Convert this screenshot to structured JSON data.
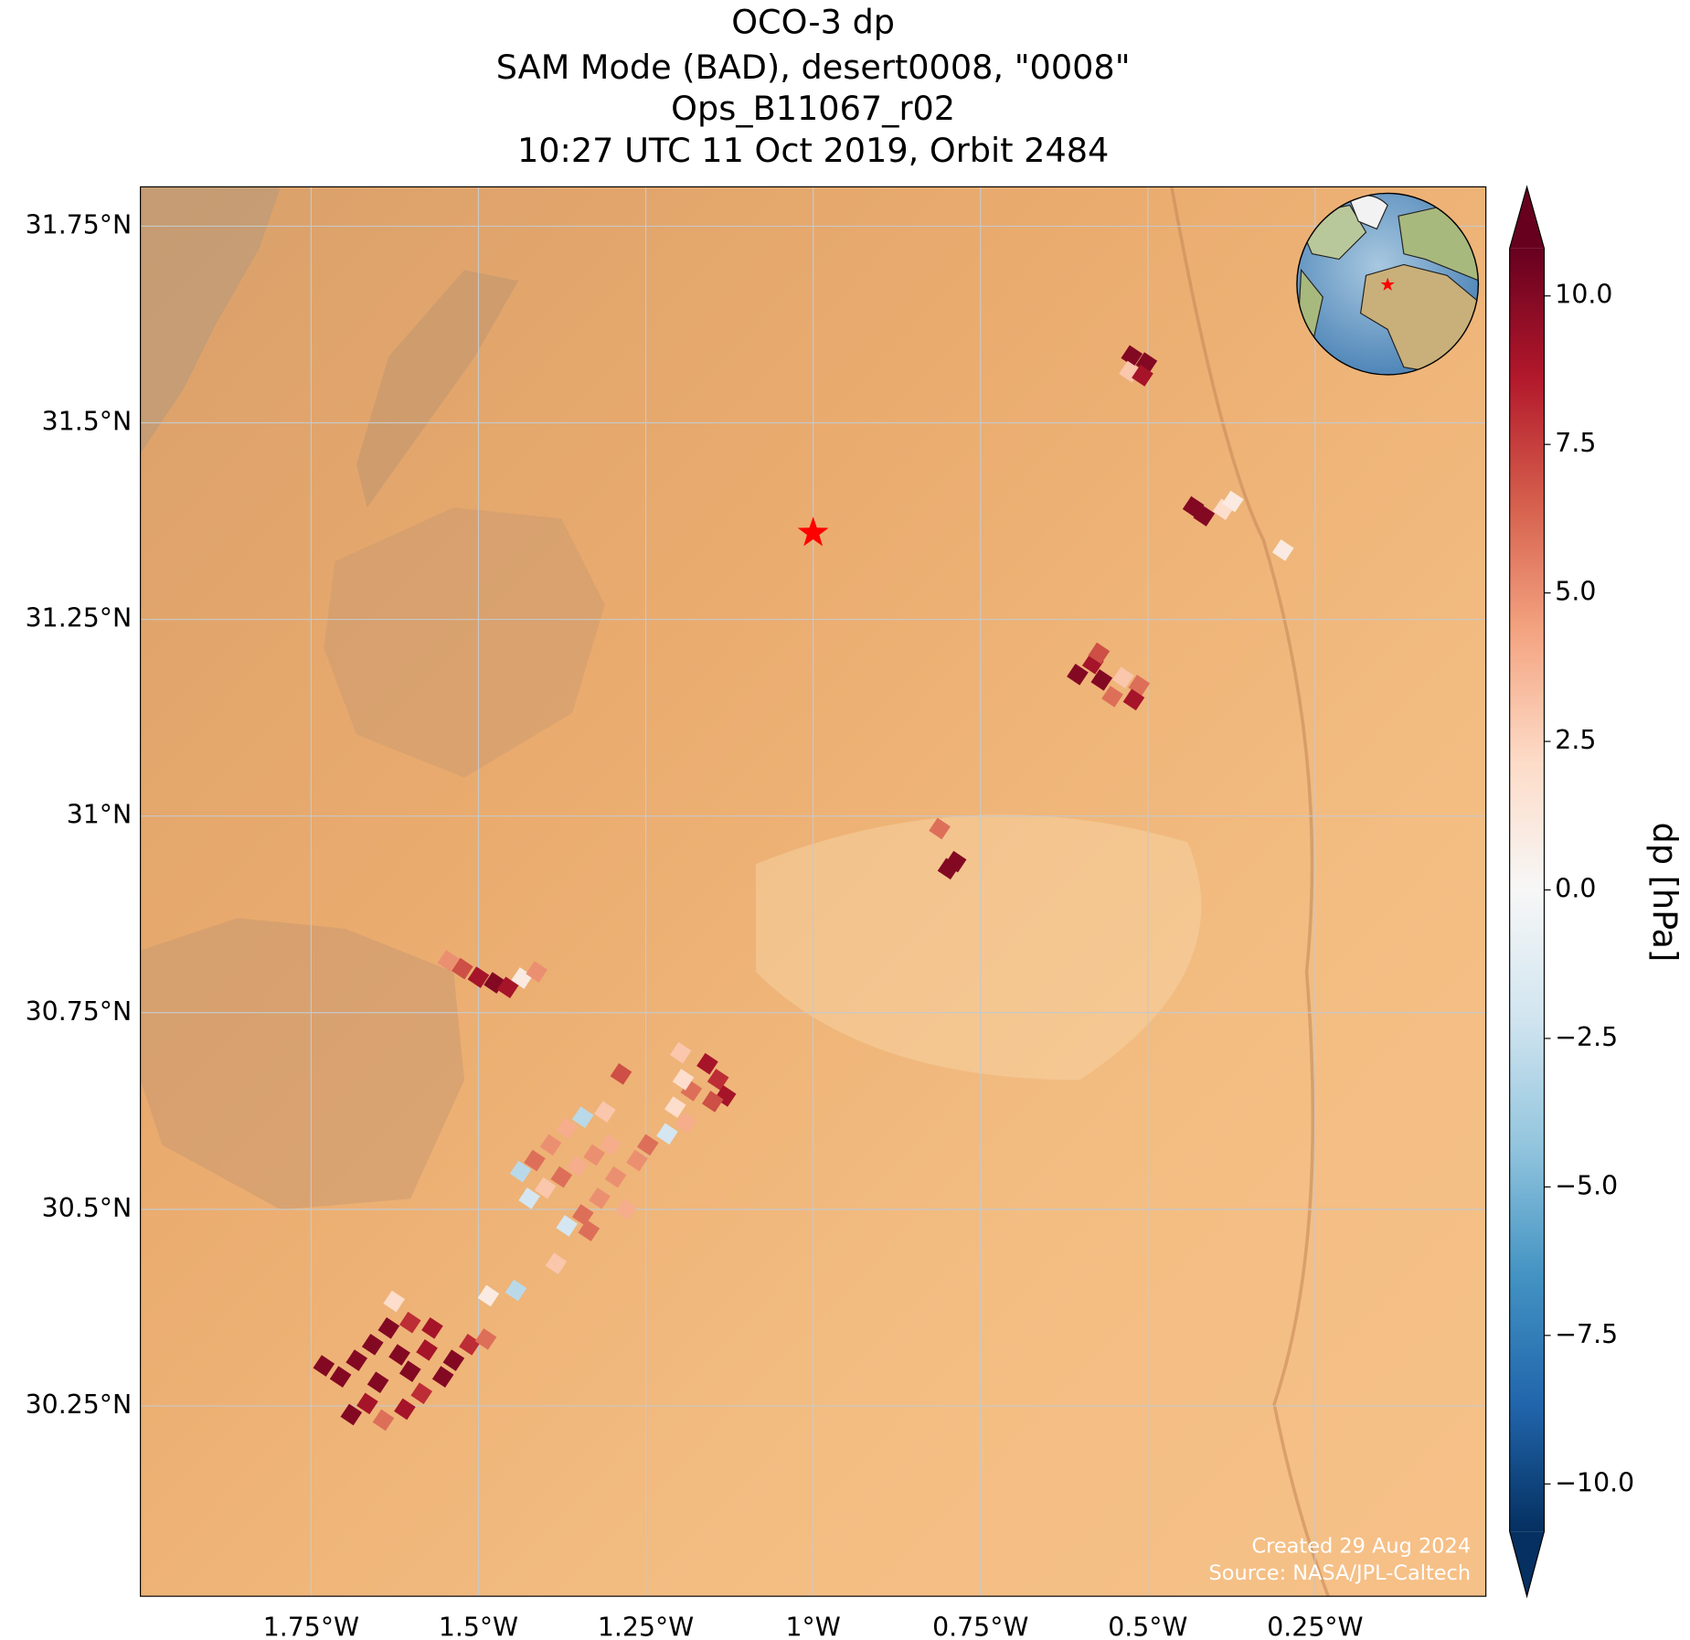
{
  "chart_data": {
    "type": "map",
    "title": [
      "OCO-3 dp",
      "SAM Mode (BAD), desert0008, \"0008\"",
      "Ops_B11067_r02",
      "10:27 UTC 11 Oct 2019, Orbit 2484"
    ],
    "xlim": [
      -2.005,
      0.005
    ],
    "ylim": [
      30.008,
      31.8
    ],
    "xticks": [
      {
        "value": -1.75,
        "label": "1.75°W"
      },
      {
        "value": -1.5,
        "label": "1.5°W"
      },
      {
        "value": -1.25,
        "label": "1.25°W"
      },
      {
        "value": -1,
        "label": "1°W"
      },
      {
        "value": -0.75,
        "label": "0.75°W"
      },
      {
        "value": -0.5,
        "label": "0.5°W"
      },
      {
        "value": -0.25,
        "label": "0.25°W"
      }
    ],
    "yticks": [
      {
        "value": 31.75,
        "label": "31.75°N"
      },
      {
        "value": 31.5,
        "label": "31.5°N"
      },
      {
        "value": 31.25,
        "label": "31.25°N"
      },
      {
        "value": 31,
        "label": "31°N"
      },
      {
        "value": 30.75,
        "label": "30.75°N"
      },
      {
        "value": 30.5,
        "label": "30.5°N"
      },
      {
        "value": 30.25,
        "label": "30.25°N"
      }
    ],
    "grid": true,
    "colorbar": {
      "label": "dp [hPa]",
      "colormap": "RdBu_r",
      "clim": [
        -10.8,
        10.8
      ],
      "extend": "both",
      "ticks": [
        {
          "value": 10,
          "label": "10.0"
        },
        {
          "value": 7.5,
          "label": "7.5"
        },
        {
          "value": 5,
          "label": "5.0"
        },
        {
          "value": 2.5,
          "label": "2.5"
        },
        {
          "value": 0,
          "label": "0.0"
        },
        {
          "value": -2.5,
          "label": "−2.5"
        },
        {
          "value": -5,
          "label": "−5.0"
        },
        {
          "value": -7.5,
          "label": "−7.5"
        },
        {
          "value": -10,
          "label": "−10.0"
        }
      ]
    },
    "target": {
      "lon": -1.0,
      "lat": 31.36,
      "color": "#ff0000"
    },
    "soundings": {
      "lon": [
        -0.524,
        -0.502,
        -0.527,
        -0.508,
        -0.432,
        -0.416,
        -0.387,
        -0.373,
        -0.298,
        -0.605,
        -0.582,
        -0.569,
        -0.553,
        -0.537,
        -0.513,
        -0.521,
        -0.573,
        -0.811,
        -0.798,
        -0.787,
        -1.545,
        -1.524,
        -1.5,
        -1.476,
        -1.456,
        -1.435,
        -1.413,
        -1.158,
        -1.142,
        -1.131,
        -1.15,
        -1.182,
        -1.198,
        -1.194,
        -1.206,
        -1.19,
        -1.218,
        -1.247,
        -1.263,
        -1.287,
        -1.311,
        -1.344,
        -1.368,
        -1.392,
        -1.416,
        -1.437,
        -1.424,
        -1.4,
        -1.376,
        -1.352,
        -1.327,
        -1.303,
        -1.295,
        -1.319,
        -1.344,
        -1.368,
        -1.335,
        -1.279,
        -1.384,
        -1.444,
        -1.485,
        -1.731,
        -1.706,
        -1.682,
        -1.658,
        -1.634,
        -1.626,
        -1.65,
        -1.666,
        -1.69,
        -1.642,
        -1.61,
        -1.602,
        -1.577,
        -1.553,
        -1.537,
        -1.513,
        -1.489,
        -1.585,
        -1.618,
        -1.569,
        -1.602
      ],
      "lat": [
        31.585,
        31.576,
        31.565,
        31.56,
        31.393,
        31.382,
        31.39,
        31.4,
        31.338,
        31.18,
        31.194,
        31.173,
        31.152,
        31.176,
        31.166,
        31.148,
        31.207,
        30.984,
        30.933,
        30.942,
        30.816,
        30.806,
        30.795,
        30.788,
        30.782,
        30.794,
        30.802,
        30.685,
        30.665,
        30.644,
        30.637,
        30.651,
        30.699,
        30.665,
        30.63,
        30.61,
        30.596,
        30.582,
        30.562,
        30.672,
        30.624,
        30.617,
        30.603,
        30.582,
        30.562,
        30.548,
        30.514,
        30.527,
        30.541,
        30.555,
        30.569,
        30.582,
        30.541,
        30.514,
        30.493,
        30.479,
        30.473,
        30.5,
        30.431,
        30.397,
        30.39,
        30.301,
        30.287,
        30.308,
        30.328,
        30.349,
        30.383,
        30.28,
        30.253,
        30.239,
        30.232,
        30.246,
        30.294,
        30.321,
        30.287,
        30.308,
        30.328,
        30.335,
        30.266,
        30.315,
        30.349,
        30.356
      ],
      "dp": [
        10,
        10,
        3,
        9,
        10,
        10,
        2,
        1,
        1,
        10,
        9,
        10,
        6,
        3,
        6,
        9,
        7,
        6,
        10,
        10,
        5,
        7,
        9,
        10,
        9,
        1,
        5,
        9,
        8,
        9,
        7,
        6,
        3,
        2,
        2,
        4,
        -2,
        6,
        5,
        7,
        3,
        -3,
        4,
        5,
        6,
        -3,
        -2,
        3,
        6,
        4,
        5,
        4,
        5,
        5,
        6,
        -2,
        6,
        4,
        3,
        -3,
        1,
        10,
        10,
        10,
        10,
        10,
        2,
        10,
        9,
        10,
        6,
        9,
        10,
        9,
        10,
        10,
        8,
        6,
        8,
        10,
        9,
        8
      ]
    },
    "annotations": [
      "Created 29 Aug 2024",
      "Source: NASA/JPL-Caltech"
    ]
  }
}
